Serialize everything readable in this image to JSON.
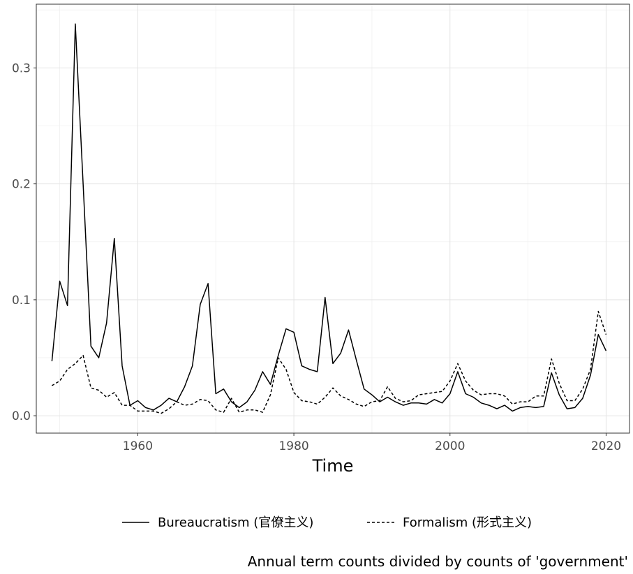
{
  "chart_data": {
    "type": "line",
    "title": "",
    "xlabel": "Time",
    "ylabel": "",
    "caption": "Annual term counts divided by counts of 'government'",
    "xlim": [
      1947,
      2023
    ],
    "ylim": [
      -0.015,
      0.355
    ],
    "x_ticks": [
      1960,
      1980,
      2000,
      2020
    ],
    "y_ticks": [
      0.0,
      0.1,
      0.2,
      0.3
    ],
    "x_tick_labels": [
      "1960",
      "1980",
      "2000",
      "2020"
    ],
    "y_tick_labels": [
      "0.0",
      "0.1",
      "0.2",
      "0.3"
    ],
    "grid": true,
    "legend_position": "bottom",
    "x": [
      1949,
      1950,
      1951,
      1952,
      1953,
      1954,
      1955,
      1956,
      1957,
      1958,
      1959,
      1960,
      1961,
      1962,
      1963,
      1964,
      1965,
      1966,
      1967,
      1968,
      1969,
      1970,
      1971,
      1972,
      1973,
      1974,
      1975,
      1976,
      1977,
      1978,
      1979,
      1980,
      1981,
      1982,
      1983,
      1984,
      1985,
      1986,
      1987,
      1988,
      1989,
      1990,
      1991,
      1992,
      1993,
      1994,
      1995,
      1996,
      1997,
      1998,
      1999,
      2000,
      2001,
      2002,
      2003,
      2004,
      2005,
      2006,
      2007,
      2008,
      2009,
      2010,
      2011,
      2012,
      2013,
      2014,
      2015,
      2016,
      2017,
      2018,
      2019,
      2020
    ],
    "series": [
      {
        "name": "Bureaucratism (官僚主义)",
        "line_style": "solid",
        "values": [
          0.047,
          0.116,
          0.095,
          0.338,
          0.2,
          0.06,
          0.05,
          0.08,
          0.153,
          0.043,
          0.009,
          0.013,
          0.007,
          0.005,
          0.009,
          0.015,
          0.012,
          0.025,
          0.043,
          0.096,
          0.114,
          0.019,
          0.023,
          0.012,
          0.007,
          0.012,
          0.022,
          0.038,
          0.027,
          0.052,
          0.075,
          0.072,
          0.043,
          0.04,
          0.038,
          0.102,
          0.045,
          0.054,
          0.074,
          0.048,
          0.023,
          0.018,
          0.012,
          0.016,
          0.012,
          0.009,
          0.011,
          0.011,
          0.01,
          0.014,
          0.011,
          0.019,
          0.038,
          0.019,
          0.016,
          0.011,
          0.009,
          0.006,
          0.009,
          0.004,
          0.007,
          0.008,
          0.007,
          0.008,
          0.037,
          0.018,
          0.006,
          0.007,
          0.015,
          0.035,
          0.07,
          0.056
        ]
      },
      {
        "name": "Formalism (形式主义)",
        "line_style": "dashed",
        "values": [
          0.026,
          0.03,
          0.04,
          0.045,
          0.052,
          0.024,
          0.022,
          0.016,
          0.02,
          0.009,
          0.009,
          0.004,
          0.004,
          0.004,
          0.002,
          0.006,
          0.012,
          0.009,
          0.01,
          0.014,
          0.013,
          0.005,
          0.003,
          0.015,
          0.003,
          0.005,
          0.005,
          0.003,
          0.018,
          0.05,
          0.04,
          0.02,
          0.013,
          0.012,
          0.01,
          0.016,
          0.024,
          0.017,
          0.014,
          0.01,
          0.008,
          0.012,
          0.013,
          0.025,
          0.015,
          0.012,
          0.013,
          0.018,
          0.019,
          0.02,
          0.021,
          0.03,
          0.045,
          0.03,
          0.022,
          0.018,
          0.019,
          0.019,
          0.017,
          0.01,
          0.012,
          0.012,
          0.017,
          0.017,
          0.049,
          0.028,
          0.013,
          0.013,
          0.023,
          0.04,
          0.09,
          0.07
        ]
      }
    ]
  }
}
